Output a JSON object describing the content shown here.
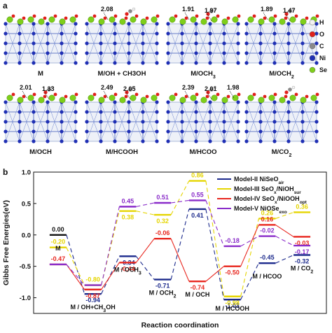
{
  "panel_a": {
    "letter": "a",
    "structures": [
      {
        "label": "M",
        "distances": []
      },
      {
        "label": "M/OH + CH3OH",
        "distances": [
          "2.08"
        ]
      },
      {
        "label": "M/OCH3",
        "distances": [
          "1.91",
          "1.97"
        ]
      },
      {
        "label": "M/OCH2",
        "distances": [
          "1.89",
          "1.47"
        ]
      },
      {
        "label": "M/OCH",
        "distances": [
          "2.01",
          "1.33"
        ]
      },
      {
        "label": "M/HCOOH",
        "distances": [
          "2.49",
          "2.05"
        ]
      },
      {
        "label": "M/HCOO",
        "distances": [
          "2.39",
          "2.01",
          "1.98"
        ]
      },
      {
        "label": "M/CO2",
        "distances": []
      }
    ],
    "element_legend": [
      {
        "symbol": "H",
        "color": "#f2f2f2"
      },
      {
        "symbol": "O",
        "color": "#e0201b"
      },
      {
        "symbol": "C",
        "color": "#8a8a8a"
      },
      {
        "symbol": "Ni",
        "color": "#1f2fb4"
      },
      {
        "symbol": "Se",
        "color": "#7fcf1a"
      }
    ]
  },
  "chart_data": {
    "type": "line",
    "letter": "b",
    "xlabel": "Reaction coordination",
    "ylabel": "Gibbs Free Energies(eV)",
    "ylim": [
      -1.25,
      1.0
    ],
    "yticks": [
      "1.0",
      "0.5",
      "0.0",
      "-0.5",
      "-1.0"
    ],
    "ytick_values": [
      1.0,
      0.5,
      0.0,
      -0.5,
      -1.0
    ],
    "states": [
      "M",
      "M / OH+CH3OH",
      "M / OCH3",
      "M / OCH2",
      "M / OCH",
      "M / HCOOH",
      "M / HCOO",
      "M / CO2"
    ],
    "legend_position": "top-right",
    "series": [
      {
        "name": "Model-II NiSeOair",
        "color": "#1c2a8c",
        "dash": "6,4",
        "values": [
          0.0,
          -0.94,
          -0.34,
          -0.71,
          0.41,
          -1.03,
          -0.45,
          -0.32
        ],
        "labels": [
          "0.00",
          "-0.94",
          "-0.34",
          "-0.71",
          "0.41",
          "-1.03",
          "-0.45",
          "-0.32"
        ]
      },
      {
        "name": "Model-III SeOx/NiOHsur",
        "color": "#e5d500",
        "dash": "6,4",
        "values": [
          -0.2,
          -0.8,
          0.38,
          0.32,
          0.86,
          -0.98,
          0.26,
          0.36
        ],
        "labels": [
          "-0.20",
          "-0.80",
          "0.38",
          "0.32",
          "0.86",
          "-0.98",
          "0.26",
          "0.36"
        ]
      },
      {
        "name": "Model-IV SeOx/NiOOHopt",
        "color": "#e8261e",
        "dash": "",
        "values": [
          -0.47,
          -0.87,
          -0.44,
          -0.06,
          -0.74,
          -0.5,
          0.16,
          -0.03
        ],
        "labels": [
          "-0.47",
          "-0.87",
          "-0.44",
          "-0.06",
          "-0.74",
          "-0.50",
          "0.16",
          "-0.03"
        ]
      },
      {
        "name": "Model-V NiOSeexo",
        "color": "#8a2cc9",
        "dash": "6,4",
        "values": [
          -0.47,
          -0.8,
          0.45,
          0.51,
          0.55,
          -0.18,
          -0.02,
          -0.17
        ],
        "labels": [
          "",
          "",
          "0.45",
          "0.51",
          "0.55",
          "-0.18",
          "-0.02",
          "-0.17"
        ]
      }
    ],
    "legend": [
      {
        "model": "Model-II",
        "name": "NiSeO",
        "sub": "air",
        "color": "#1c2a8c"
      },
      {
        "model": "Model-III",
        "name": "SeO",
        "x": "x",
        "name2": "/NiOH",
        "sub": "sur",
        "color": "#e5d500"
      },
      {
        "model": "Model-IV",
        "name": "SeO",
        "x": "x",
        "name2": "/NiOOH",
        "sub": "opt",
        "color": "#e8261e"
      },
      {
        "model": "Model-V",
        "name": "NiOSe",
        "sub": "exo",
        "color": "#8a2cc9"
      }
    ]
  }
}
